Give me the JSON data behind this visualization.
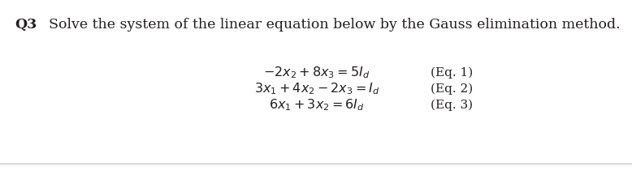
{
  "title_q": "Q3",
  "title_text": "Solve the system of the linear equation below by the Gauss elimination method.",
  "eq1": "$-2x_2 + 8x_3 = 5I_d$",
  "eq2": "$3x_1 + 4x_2 - 2x_3 = I_d$",
  "eq3": "$6x_1 + 3x_2 = 6I_d$",
  "label1": "(Eq. 1)",
  "label2": "(Eq. 2)",
  "label3": "(Eq. 3)",
  "bg_color": "#ffffff",
  "text_color": "#231f20",
  "title_fontsize": 12.5,
  "eq_fontsize": 11.5,
  "label_fontsize": 11,
  "fig_width": 7.78,
  "fig_height": 2.1,
  "dpi": 100
}
